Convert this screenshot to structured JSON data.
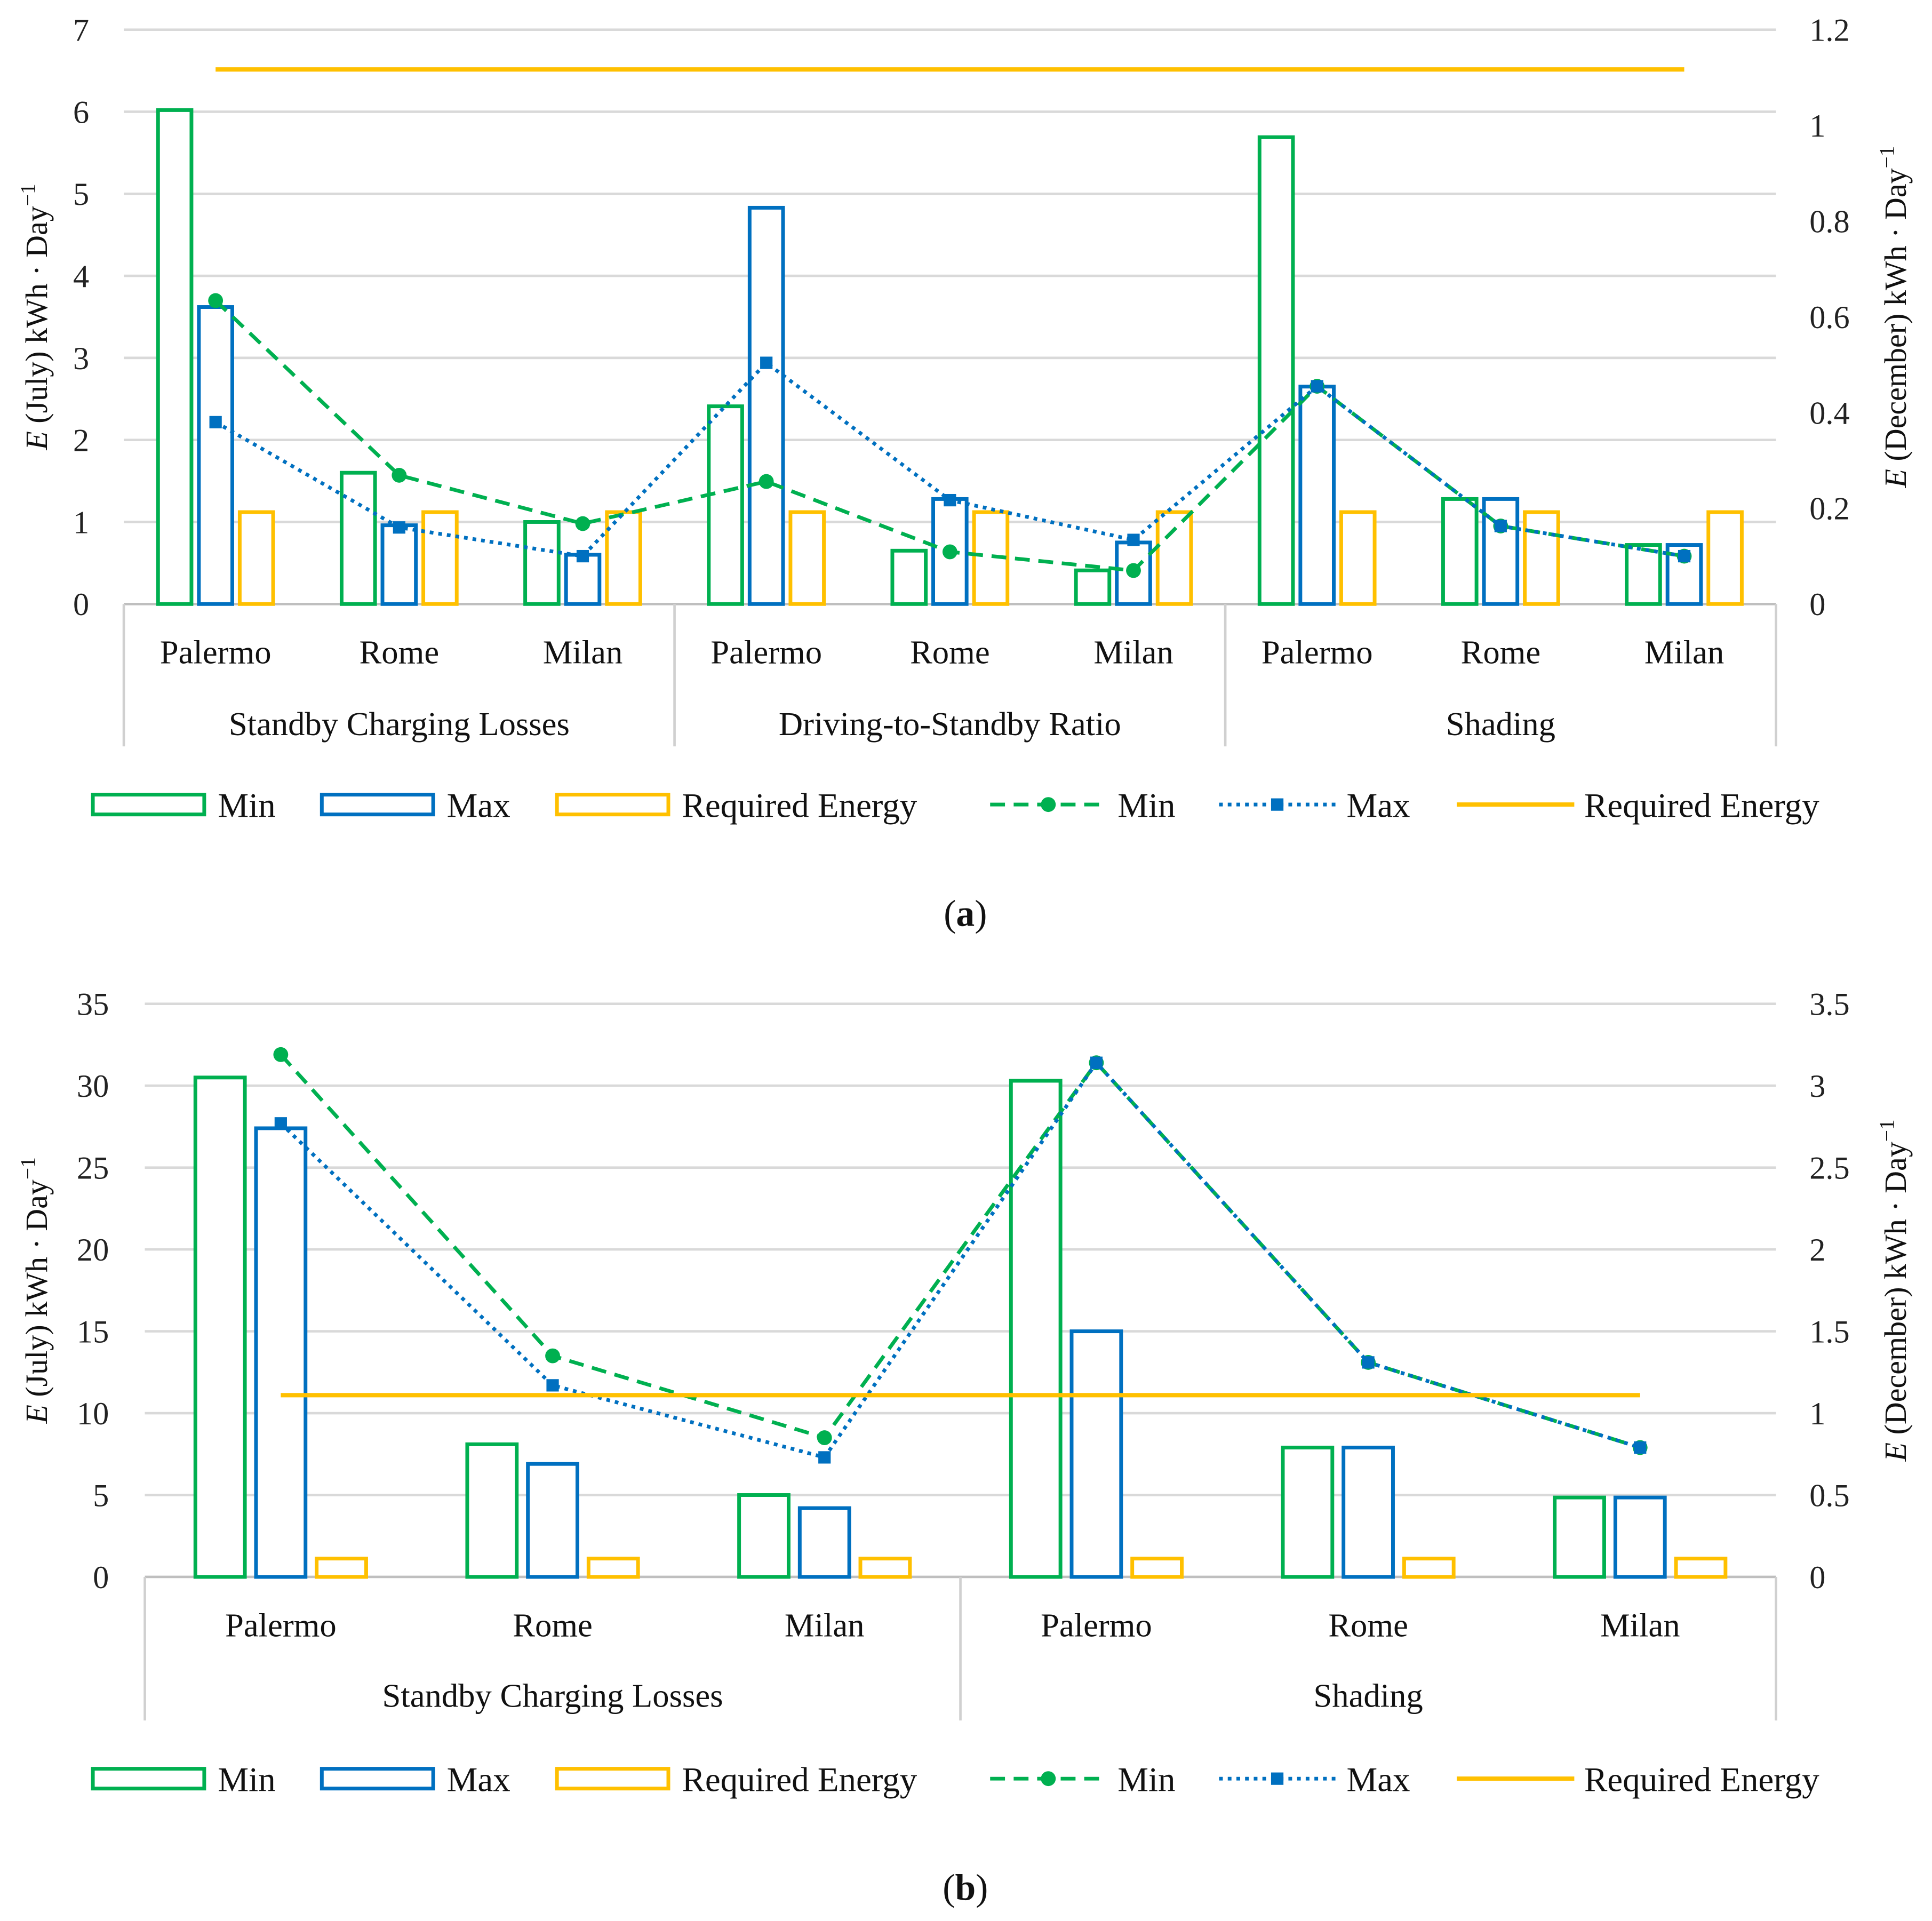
{
  "colors": {
    "min": "#00b050",
    "max": "#0070c0",
    "required": "#ffc000",
    "grid": "#d9d9d9"
  },
  "legend": [
    "Min",
    "Max",
    "Required Energy",
    "Min",
    "Max",
    "Required Energy"
  ],
  "chart_data": [
    {
      "type": "bar",
      "caption_letter": "a",
      "ylabel_left_var": "E",
      "ylabel_left": " (July) kWh · Day",
      "ylabel_right_var": "E",
      "ylabel_right": " (December) kWh · Day",
      "ylabel_sup": "−1",
      "ylim_left": [
        0,
        7
      ],
      "yticks_left": [
        "0",
        "1",
        "2",
        "3",
        "4",
        "5",
        "6",
        "7"
      ],
      "ylim_right": [
        0,
        1.2
      ],
      "yticks_right": [
        "0",
        "0.2",
        "0.4",
        "0.6",
        "0.8",
        "1",
        "1.2"
      ],
      "groups": [
        "Standby Charging Losses",
        "Driving-to-Standby Ratio",
        "Shading"
      ],
      "categories": [
        "Palermo",
        "Rome",
        "Milan"
      ],
      "bars_july": {
        "Min": [
          6.02,
          1.6,
          1.0,
          2.41,
          0.65,
          0.41,
          5.69,
          1.28,
          0.72
        ],
        "Max": [
          3.62,
          0.96,
          0.6,
          4.83,
          1.28,
          0.75,
          2.65,
          1.28,
          0.72
        ],
        "Required Energy": [
          1.12,
          1.12,
          1.12,
          1.12,
          1.12,
          1.12,
          1.12,
          1.12,
          1.12
        ]
      },
      "lines_december": {
        "Min": [
          0.634,
          0.269,
          0.168,
          0.256,
          0.109,
          0.07,
          0.455,
          0.163,
          0.1
        ],
        "Max": [
          0.38,
          0.16,
          0.1,
          0.504,
          0.217,
          0.134,
          0.455,
          0.163,
          0.1
        ],
        "Required Energy": 1.117
      }
    },
    {
      "type": "bar",
      "caption_letter": "b",
      "ylabel_left_var": "E",
      "ylabel_left": " (July) kWh · Day",
      "ylabel_right_var": "E",
      "ylabel_right": " (December) kWh · Day",
      "ylabel_sup": "−1",
      "ylim_left": [
        0,
        35
      ],
      "yticks_left": [
        "0",
        "5",
        "10",
        "15",
        "20",
        "25",
        "30",
        "35"
      ],
      "ylim_right": [
        0,
        3.5
      ],
      "yticks_right": [
        "0",
        "0.5",
        "1",
        "1.5",
        "2",
        "2.5",
        "3",
        "3.5"
      ],
      "groups": [
        "Standby Charging Losses",
        "Shading"
      ],
      "categories": [
        "Palermo",
        "Rome",
        "Milan"
      ],
      "bars_july": {
        "Min": [
          30.5,
          8.1,
          5.0,
          30.3,
          7.9,
          4.85
        ],
        "Max": [
          27.4,
          6.9,
          4.2,
          15.0,
          7.9,
          4.85
        ],
        "Required Energy": [
          1.12,
          1.12,
          1.12,
          1.12,
          1.12,
          1.12
        ]
      },
      "lines_december": {
        "Min": [
          3.19,
          1.35,
          0.85,
          3.14,
          1.31,
          0.79
        ],
        "Max": [
          2.77,
          1.17,
          0.73,
          3.14,
          1.31,
          0.79
        ],
        "Required Energy": 1.11
      }
    }
  ]
}
